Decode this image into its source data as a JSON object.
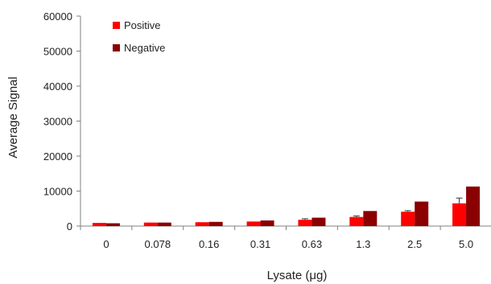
{
  "chart_data": {
    "type": "bar",
    "title": "",
    "xlabel": "Lysate (μg)",
    "ylabel": "Average Signal",
    "ylim": [
      0,
      60000
    ],
    "yticks": [
      0,
      10000,
      20000,
      30000,
      40000,
      50000,
      60000
    ],
    "categories": [
      "0",
      "0.078",
      "0.16",
      "0.31",
      "0.63",
      "1.3",
      "2.5",
      "5.0"
    ],
    "series": [
      {
        "name": "Positive",
        "color": "#ff0000",
        "values": [
          900,
          1000,
          1100,
          1300,
          1800,
          2600,
          4100,
          6500
        ],
        "errors": [
          0,
          0,
          0,
          0,
          300,
          300,
          300,
          1500
        ]
      },
      {
        "name": "Negative",
        "color": "#8b0000",
        "values": [
          800,
          1000,
          1200,
          1600,
          2400,
          4300,
          7000,
          11300
        ],
        "errors": [
          0,
          0,
          0,
          0,
          0,
          0,
          0,
          0
        ]
      }
    ],
    "legend_position": "top-left",
    "grid": false
  }
}
